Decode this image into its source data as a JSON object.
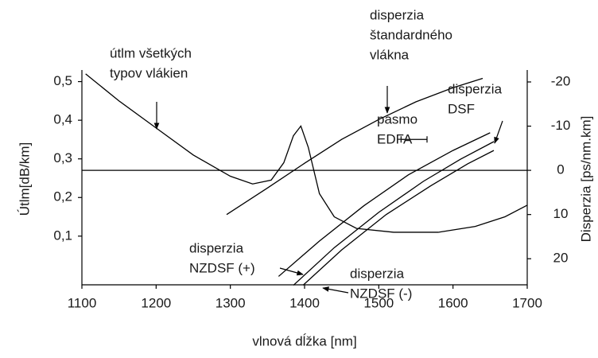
{
  "chart_data": {
    "type": "line",
    "xlabel": "vlnová dĺžka [nm]",
    "ylabel": "Útlm[dB/km]",
    "y2label": "Disperzia [ps/nm.km]",
    "xlim": [
      1100,
      1700
    ],
    "xticks": [
      1100,
      1200,
      1300,
      1400,
      1500,
      1600,
      1700
    ],
    "ylim": [
      -0.026,
      0.53
    ],
    "yticks": [
      {
        "value": 0.1,
        "label": "0,1"
      },
      {
        "value": 0.2,
        "label": "0,2"
      },
      {
        "value": 0.3,
        "label": "0,3"
      },
      {
        "value": 0.4,
        "label": "0,4"
      },
      {
        "value": 0.5,
        "label": "0,5"
      }
    ],
    "y2lim": [
      25.9,
      -22.7
    ],
    "y2ticks": [
      -20,
      -10,
      0,
      10,
      20
    ],
    "series": [
      {
        "name": "útlm",
        "color": "#000000",
        "axis": "y",
        "x": [
          1105,
          1150,
          1200,
          1250,
          1300,
          1330,
          1355,
          1372,
          1385,
          1395,
          1405,
          1420,
          1440,
          1470,
          1520,
          1580,
          1630,
          1670,
          1700
        ],
        "values": [
          0.52,
          0.45,
          0.38,
          0.31,
          0.255,
          0.235,
          0.245,
          0.29,
          0.36,
          0.385,
          0.33,
          0.21,
          0.15,
          0.12,
          0.11,
          0.11,
          0.125,
          0.15,
          0.18
        ]
      },
      {
        "name": "disperzia štandardného vlákna",
        "color": "#000000",
        "axis": "y2",
        "x": [
          1295,
          1350,
          1400,
          1450,
          1500,
          1550,
          1600,
          1640
        ],
        "values": [
          10,
          4,
          -1.6,
          -7,
          -11.5,
          -15.5,
          -18.7,
          -20.8
        ]
      },
      {
        "name": "disperzia NZDSF (+)",
        "color": "#000000",
        "axis": "y2",
        "x": [
          1365,
          1420,
          1480,
          1540,
          1600,
          1650
        ],
        "values": [
          24,
          16,
          8,
          1,
          -4.5,
          -8.5
        ]
      },
      {
        "name": "disperzia DSF",
        "color": "#000000",
        "axis": "y2",
        "x": [
          1385,
          1440,
          1500,
          1560,
          1610,
          1655
        ],
        "values": [
          26,
          17.5,
          9.5,
          2.5,
          -2.5,
          -6.5
        ]
      },
      {
        "name": "disperzia NZDSF (-)",
        "color": "#000000",
        "axis": "y2",
        "x": [
          1398,
          1450,
          1510,
          1570,
          1620,
          1655
        ],
        "values": [
          26,
          18,
          10,
          3.5,
          -1.5,
          -4.5
        ]
      }
    ],
    "band": {
      "x": [
        1530,
        1565
      ],
      "value": -7
    },
    "annotations": [
      [
        "útlm všetkých",
        "typov vlákien"
      ],
      [
        "disperzia",
        "štandardného",
        "vlákna"
      ],
      [
        "disperzia",
        "DSF"
      ],
      [
        "pásmo",
        "EDFA"
      ],
      [
        "disperzia",
        "NZDSF (+)"
      ],
      [
        "disperzia",
        "NZDSF (-)"
      ]
    ]
  }
}
